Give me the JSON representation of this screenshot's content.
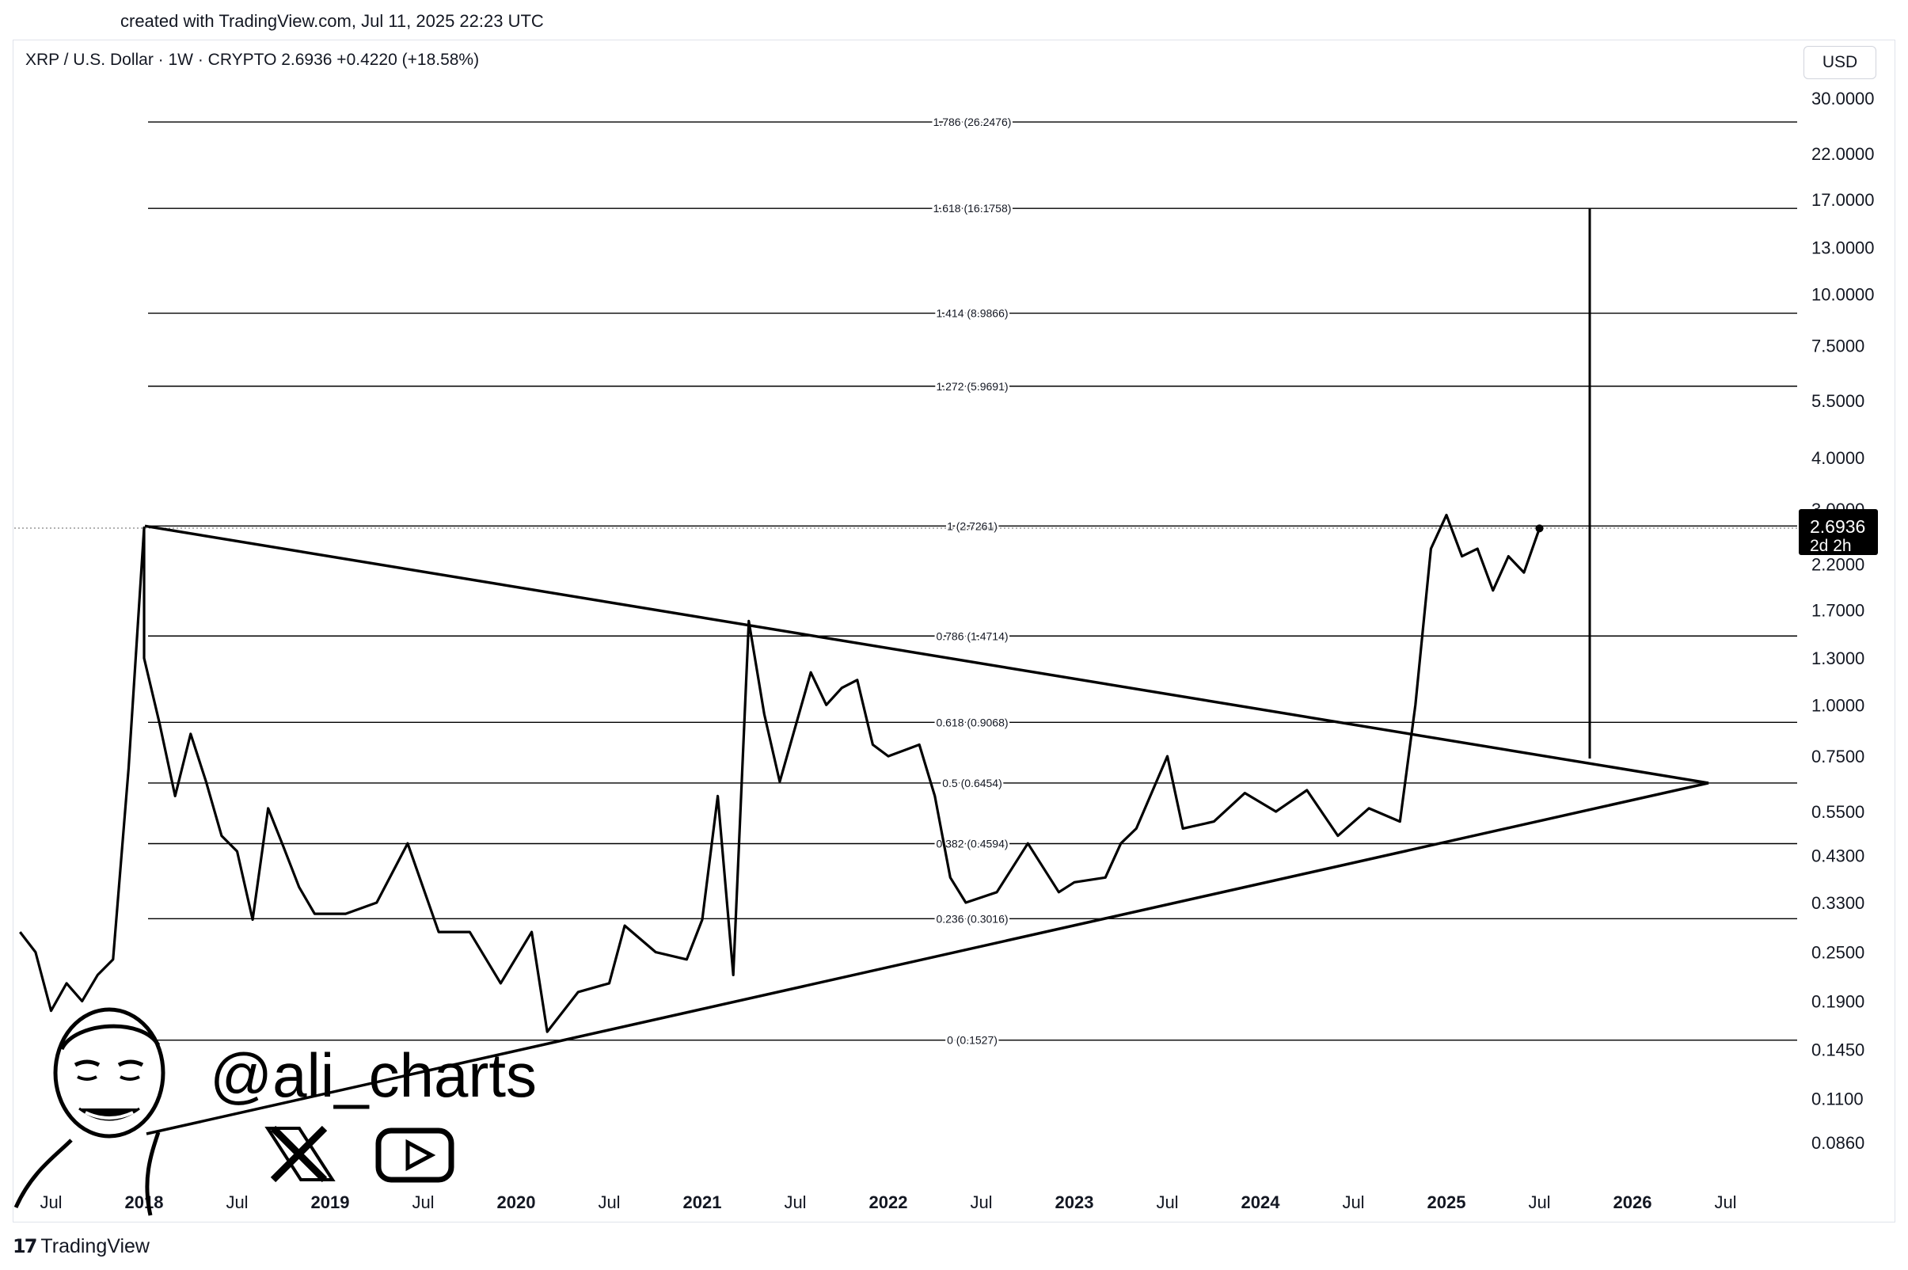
{
  "header": {
    "created_text": "created with TradingView.com, Jul 11, 2025 22:23 UTC",
    "symbol_line": "XRP / U.S. Dollar · 1W · CRYPTO  2.6936  +0.4220 (+18.58%)",
    "currency": "USD"
  },
  "footer": {
    "brand": "TradingView",
    "brand_icon": "tradingview-logo-icon"
  },
  "watermark": {
    "handle": "@ali_charts",
    "icons": [
      "x-logo-icon",
      "youtube-icon"
    ],
    "avatar": "cartoon-face-avatar"
  },
  "price_tag": {
    "price": "2.6936",
    "countdown": "2d 2h"
  },
  "colors": {
    "line": "#000000",
    "text": "#131722",
    "border": "#e0e3eb",
    "tag_bg": "#000000"
  },
  "chart_data": {
    "type": "line",
    "title": "",
    "scale": "log",
    "grid": false,
    "yticks": [
      "30.0000",
      "22.0000",
      "17.0000",
      "13.0000",
      "10.0000",
      "7.5000",
      "5.5000",
      "4.0000",
      "3.0000",
      "2.2000",
      "1.7000",
      "1.3000",
      "1.0000",
      "0.7500",
      "0.5500",
      "0.4300",
      "0.3300",
      "0.2500",
      "0.1900",
      "0.1450",
      "0.1100",
      "0.0860"
    ],
    "xticks": [
      "Jul",
      "2018",
      "Jul",
      "2019",
      "Jul",
      "2020",
      "Jul",
      "2021",
      "Jul",
      "2022",
      "Jul",
      "2023",
      "Jul",
      "2024",
      "Jul",
      "2025",
      "Jul",
      "2026",
      "Jul"
    ],
    "fib_levels": [
      {
        "label": "1.786 (26.2476)",
        "value": 26.2476
      },
      {
        "label": "1.618 (16.1758)",
        "value": 16.1758
      },
      {
        "label": "1.414 (8.9866)",
        "value": 8.9866
      },
      {
        "label": "1.272 (5.9691)",
        "value": 5.9691
      },
      {
        "label": "1 (2.7261)",
        "value": 2.7261
      },
      {
        "label": "0.786 (1.4714)",
        "value": 1.4714
      },
      {
        "label": "0.618 (0.9068)",
        "value": 0.9068
      },
      {
        "label": "0.5 (0.6454)",
        "value": 0.6454
      },
      {
        "label": "0.382 (0.4594)",
        "value": 0.4594
      },
      {
        "label": "0.236 (0.3016)",
        "value": 0.3016
      },
      {
        "label": "0 (0.1527)",
        "value": 0.1527
      }
    ],
    "last_price": 2.6936,
    "series": [
      {
        "x": [
          "2017-05",
          "2017-06",
          "2017-07",
          "2017-08",
          "2017-09",
          "2017-10",
          "2017-11",
          "2017-12",
          "2018-01",
          "2018-01",
          "2018-02",
          "2018-03",
          "2018-04",
          "2018-05",
          "2018-06",
          "2018-07",
          "2018-08",
          "2018-09",
          "2018-10",
          "2018-11",
          "2018-12",
          "2019-02",
          "2019-04",
          "2019-06",
          "2019-08",
          "2019-10",
          "2019-12",
          "2020-02",
          "2020-03",
          "2020-05",
          "2020-07",
          "2020-08",
          "2020-10",
          "2020-12",
          "2021-01",
          "2021-02",
          "2021-03",
          "2021-04",
          "2021-05",
          "2021-06",
          "2021-08",
          "2021-09",
          "2021-10",
          "2021-11",
          "2021-12",
          "2022-01",
          "2022-03",
          "2022-04",
          "2022-05",
          "2022-06",
          "2022-08",
          "2022-10",
          "2022-12",
          "2023-01",
          "2023-03",
          "2023-04",
          "2023-05",
          "2023-07",
          "2023-08",
          "2023-10",
          "2023-12",
          "2024-02",
          "2024-04",
          "2024-06",
          "2024-08",
          "2024-10",
          "2024-11",
          "2024-12",
          "2025-01",
          "2025-02",
          "2025-03",
          "2025-04",
          "2025-05",
          "2025-06",
          "2025-07"
        ],
        "values": [
          0.28,
          0.25,
          0.18,
          0.21,
          0.19,
          0.22,
          0.24,
          0.7,
          2.7,
          1.3,
          0.9,
          0.6,
          0.85,
          0.65,
          0.48,
          0.44,
          0.3,
          0.56,
          0.45,
          0.36,
          0.31,
          0.31,
          0.33,
          0.46,
          0.28,
          0.28,
          0.21,
          0.28,
          0.16,
          0.2,
          0.21,
          0.29,
          0.25,
          0.24,
          0.3,
          0.6,
          0.22,
          1.6,
          0.95,
          0.65,
          1.2,
          1.0,
          1.1,
          1.15,
          0.8,
          0.75,
          0.8,
          0.6,
          0.38,
          0.33,
          0.35,
          0.46,
          0.35,
          0.37,
          0.38,
          0.46,
          0.5,
          0.75,
          0.5,
          0.52,
          0.61,
          0.55,
          0.62,
          0.48,
          0.56,
          0.52,
          1.0,
          2.4,
          2.9,
          2.3,
          2.4,
          1.9,
          2.3,
          2.1,
          2.69
        ]
      }
    ]
  }
}
